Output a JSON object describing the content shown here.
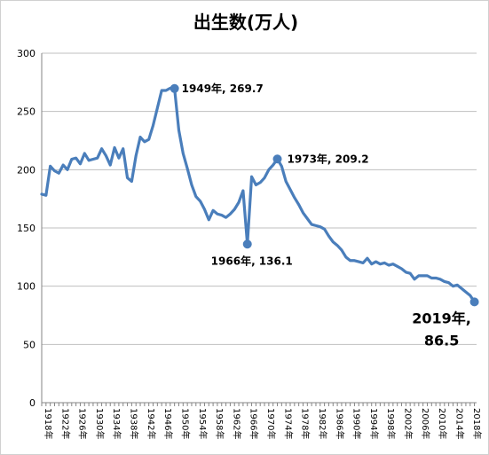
{
  "chart_data": {
    "type": "line",
    "title": "出生数(万人)",
    "xlabel": "",
    "ylabel": "",
    "ylim": [
      0,
      300
    ],
    "y_ticks": [
      0,
      50,
      100,
      150,
      200,
      250,
      300
    ],
    "grid": "horizontal",
    "line_color": "#4A7EBB",
    "x_tick_labels": [
      "1918年",
      "1922年",
      "1926年",
      "1930年",
      "1934年",
      "1938年",
      "1942年",
      "1946年",
      "1950年",
      "1954年",
      "1958年",
      "1962年",
      "1966年",
      "1970年",
      "1974年",
      "1978年",
      "1982年",
      "1986年",
      "1990年",
      "1994年",
      "1998年",
      "2002年",
      "2006年",
      "2010年",
      "2014年",
      "2018年"
    ],
    "series": [
      {
        "x": [
          1918,
          1919,
          1920,
          1921,
          1922,
          1923,
          1924,
          1925,
          1926,
          1927,
          1928,
          1929,
          1930,
          1931,
          1932,
          1933,
          1934,
          1935,
          1936,
          1937,
          1938,
          1939,
          1940,
          1941,
          1942,
          1943,
          1944,
          1945,
          1946,
          1947,
          1948,
          1949,
          1950,
          1951,
          1952,
          1953,
          1954,
          1955,
          1956,
          1957,
          1958,
          1959,
          1960,
          1961,
          1962,
          1963,
          1964,
          1965,
          1966,
          1967,
          1968,
          1969,
          1970,
          1971,
          1972,
          1973,
          1974,
          1975,
          1976,
          1977,
          1978,
          1979,
          1980,
          1981,
          1982,
          1983,
          1984,
          1985,
          1986,
          1987,
          1988,
          1989,
          1990,
          1991,
          1992,
          1993,
          1994,
          1995,
          1996,
          1997,
          1998,
          1999,
          2000,
          2001,
          2002,
          2003,
          2004,
          2005,
          2006,
          2007,
          2008,
          2009,
          2010,
          2011,
          2012,
          2013,
          2014,
          2015,
          2016,
          2017,
          2018,
          2019
        ],
        "values": [
          179,
          178,
          203,
          199,
          197,
          204,
          200,
          209,
          210,
          205,
          214,
          208,
          209,
          210,
          218,
          212,
          204,
          219,
          210,
          218,
          193,
          190,
          212,
          228,
          224,
          226,
          238,
          253,
          268,
          268,
          270,
          269.7,
          234,
          214,
          201,
          187,
          177,
          173,
          166,
          157,
          165,
          162,
          161,
          159,
          162,
          166,
          172,
          182,
          136.1,
          194,
          187,
          189,
          193,
          200,
          204,
          209.2,
          203,
          190,
          183,
          176,
          170,
          163,
          158,
          153,
          152,
          151,
          149,
          143,
          138,
          135,
          131,
          125,
          122,
          122,
          121,
          120,
          124,
          119,
          121,
          119,
          120,
          118,
          119,
          117,
          115,
          112,
          111,
          106,
          109,
          109,
          109,
          107,
          107,
          106,
          104,
          103,
          100,
          101,
          98,
          95,
          92,
          86.5
        ]
      }
    ],
    "annotations": [
      {
        "x": 1949,
        "y": 269.7,
        "label": "1949年, 269.7"
      },
      {
        "x": 1966,
        "y": 136.1,
        "label": "1966年, 136.1"
      },
      {
        "x": 1973,
        "y": 209.2,
        "label": "1973年, 209.2"
      },
      {
        "x": 2019,
        "y": 86.5,
        "label_line1": "2019年,",
        "label_line2": "86.5"
      }
    ]
  }
}
